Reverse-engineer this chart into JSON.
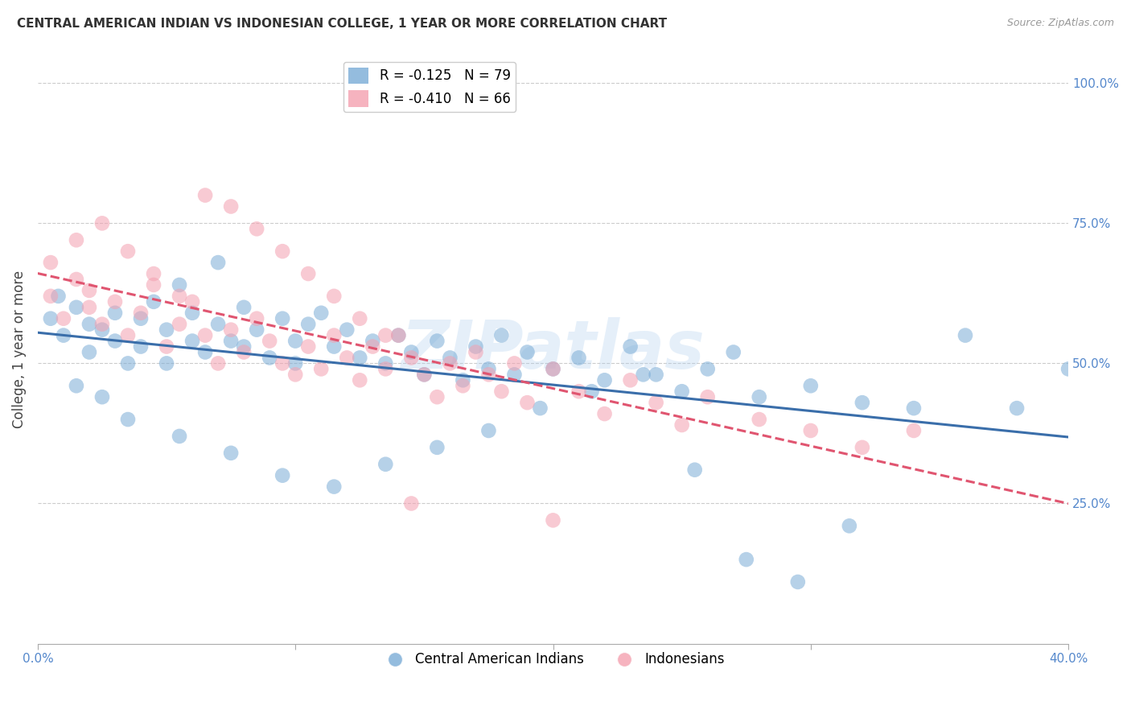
{
  "title": "CENTRAL AMERICAN INDIAN VS INDONESIAN COLLEGE, 1 YEAR OR MORE CORRELATION CHART",
  "source": "Source: ZipAtlas.com",
  "ylabel": "College, 1 year or more",
  "x_min": 0.0,
  "x_max": 0.4,
  "y_min": 0.0,
  "y_max": 1.05,
  "legend_r1": "R = -0.125",
  "legend_n1": "N = 79",
  "legend_r2": "R = -0.410",
  "legend_n2": "N = 66",
  "color_blue": "#7aacd6",
  "color_pink": "#f4a0b0",
  "trend_blue": "#3a6eaa",
  "trend_pink": "#e05570",
  "watermark": "ZIPatlas",
  "blue_x": [
    0.005,
    0.008,
    0.01,
    0.015,
    0.02,
    0.02,
    0.025,
    0.03,
    0.03,
    0.035,
    0.04,
    0.04,
    0.045,
    0.05,
    0.05,
    0.055,
    0.06,
    0.06,
    0.065,
    0.07,
    0.07,
    0.075,
    0.08,
    0.08,
    0.085,
    0.09,
    0.095,
    0.1,
    0.1,
    0.105,
    0.11,
    0.115,
    0.12,
    0.125,
    0.13,
    0.135,
    0.14,
    0.145,
    0.15,
    0.155,
    0.16,
    0.165,
    0.17,
    0.175,
    0.18,
    0.185,
    0.19,
    0.2,
    0.21,
    0.22,
    0.23,
    0.24,
    0.25,
    0.26,
    0.27,
    0.28,
    0.3,
    0.32,
    0.34,
    0.36,
    0.38,
    0.4,
    0.015,
    0.025,
    0.035,
    0.055,
    0.075,
    0.095,
    0.115,
    0.135,
    0.155,
    0.175,
    0.195,
    0.215,
    0.235,
    0.255,
    0.275,
    0.295,
    0.315
  ],
  "blue_y": [
    0.58,
    0.62,
    0.55,
    0.6,
    0.57,
    0.52,
    0.56,
    0.54,
    0.59,
    0.5,
    0.58,
    0.53,
    0.61,
    0.56,
    0.5,
    0.64,
    0.59,
    0.54,
    0.52,
    0.68,
    0.57,
    0.54,
    0.6,
    0.53,
    0.56,
    0.51,
    0.58,
    0.54,
    0.5,
    0.57,
    0.59,
    0.53,
    0.56,
    0.51,
    0.54,
    0.5,
    0.55,
    0.52,
    0.48,
    0.54,
    0.51,
    0.47,
    0.53,
    0.49,
    0.55,
    0.48,
    0.52,
    0.49,
    0.51,
    0.47,
    0.53,
    0.48,
    0.45,
    0.49,
    0.52,
    0.44,
    0.46,
    0.43,
    0.42,
    0.55,
    0.42,
    0.49,
    0.46,
    0.44,
    0.4,
    0.37,
    0.34,
    0.3,
    0.28,
    0.32,
    0.35,
    0.38,
    0.42,
    0.45,
    0.48,
    0.31,
    0.15,
    0.11,
    0.21
  ],
  "pink_x": [
    0.005,
    0.01,
    0.015,
    0.02,
    0.02,
    0.025,
    0.03,
    0.035,
    0.04,
    0.045,
    0.05,
    0.055,
    0.06,
    0.065,
    0.07,
    0.075,
    0.08,
    0.085,
    0.09,
    0.095,
    0.1,
    0.105,
    0.11,
    0.115,
    0.12,
    0.125,
    0.13,
    0.135,
    0.14,
    0.145,
    0.15,
    0.155,
    0.16,
    0.165,
    0.17,
    0.175,
    0.18,
    0.185,
    0.19,
    0.2,
    0.21,
    0.22,
    0.23,
    0.24,
    0.25,
    0.26,
    0.28,
    0.3,
    0.32,
    0.34,
    0.005,
    0.015,
    0.025,
    0.035,
    0.045,
    0.055,
    0.065,
    0.075,
    0.085,
    0.095,
    0.105,
    0.115,
    0.125,
    0.135,
    0.145,
    0.2
  ],
  "pink_y": [
    0.62,
    0.58,
    0.65,
    0.6,
    0.63,
    0.57,
    0.61,
    0.55,
    0.59,
    0.64,
    0.53,
    0.57,
    0.61,
    0.55,
    0.5,
    0.56,
    0.52,
    0.58,
    0.54,
    0.5,
    0.48,
    0.53,
    0.49,
    0.55,
    0.51,
    0.47,
    0.53,
    0.49,
    0.55,
    0.51,
    0.48,
    0.44,
    0.5,
    0.46,
    0.52,
    0.48,
    0.45,
    0.5,
    0.43,
    0.49,
    0.45,
    0.41,
    0.47,
    0.43,
    0.39,
    0.44,
    0.4,
    0.38,
    0.35,
    0.38,
    0.68,
    0.72,
    0.75,
    0.7,
    0.66,
    0.62,
    0.8,
    0.78,
    0.74,
    0.7,
    0.66,
    0.62,
    0.58,
    0.55,
    0.25,
    0.22
  ]
}
